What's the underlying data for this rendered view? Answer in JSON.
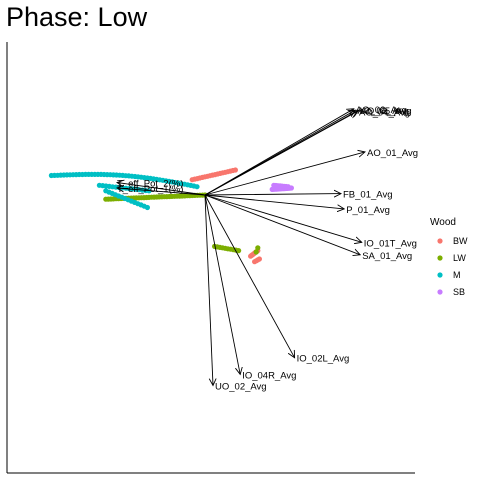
{
  "chart_data": {
    "type": "scatter",
    "title": "Phase: Low",
    "legend": {
      "title": "Wood",
      "position": "right",
      "entries": [
        {
          "label": "BW",
          "color": "#F8766D"
        },
        {
          "label": "LW",
          "color": "#7CAE00"
        },
        {
          "label": "M",
          "color": "#00BFC4"
        },
        {
          "label": "SB",
          "color": "#C77CFF"
        }
      ]
    },
    "xlim": [
      -1.0,
      1.55
    ],
    "ylim": [
      -1.85,
      1.25
    ],
    "grid": false,
    "vectors": [
      {
        "label": "AO_02_Avg",
        "x": 0.93,
        "y": 0.62
      },
      {
        "label": "AO_03_Avg",
        "x": 0.94,
        "y": 0.61
      },
      {
        "label": "AO_04_Avg",
        "x": 0.95,
        "y": 0.6
      },
      {
        "label": "AO_05_Avg",
        "x": 0.96,
        "y": 0.61
      },
      {
        "label": "AO_01_Avg",
        "x": 1.0,
        "y": 0.31
      },
      {
        "label": "FB_01_Avg",
        "x": 0.85,
        "y": 0.01
      },
      {
        "label": "P_01_Avg",
        "x": 0.87,
        "y": -0.1
      },
      {
        "label": "IO_01T_Avg",
        "x": 0.98,
        "y": -0.34
      },
      {
        "label": "SA_01_Avg",
        "x": 0.97,
        "y": -0.43
      },
      {
        "label": "IO_02L_Avg",
        "x": 0.56,
        "y": -1.17
      },
      {
        "label": "IO_04R_Avg",
        "x": 0.22,
        "y": -1.29
      },
      {
        "label": "UO_02_Avg",
        "x": 0.05,
        "y": -1.37
      },
      {
        "label": "T_eff_Pot_2(%)",
        "x": -0.55,
        "y": 0.09
      },
      {
        "label": "T_eff_Pot_1(%)",
        "x": -0.55,
        "y": 0.05
      }
    ],
    "series": [
      {
        "name": "BW",
        "color": "#F8766D",
        "groups": [
          {
            "x0": -0.08,
            "y0": 0.11,
            "x1": 0.19,
            "y1": 0.18,
            "curve": 0.0,
            "n": 18
          },
          {
            "x0": 0.285,
            "y0": -0.44,
            "x1": 0.33,
            "y1": -0.4,
            "curve": 0.0,
            "n": 8
          },
          {
            "x0": 0.31,
            "y0": -0.48,
            "x1": 0.34,
            "y1": -0.46,
            "curve": 0.0,
            "n": 4
          }
        ]
      },
      {
        "name": "LW",
        "color": "#7CAE00",
        "groups": [
          {
            "x0": -0.62,
            "y0": -0.03,
            "x1": 0.0,
            "y1": 0.0,
            "curve": 0.0,
            "n": 40
          },
          {
            "x0": 0.06,
            "y0": -0.37,
            "x1": 0.21,
            "y1": -0.4,
            "curve": 0.0,
            "n": 10
          },
          {
            "x0": 0.32,
            "y0": -0.41,
            "x1": 0.33,
            "y1": -0.38,
            "curve": 0.0,
            "n": 2
          }
        ]
      },
      {
        "name": "M",
        "color": "#00BFC4",
        "groups": [
          {
            "x0": -0.96,
            "y0": 0.14,
            "x1": -0.05,
            "y1": 0.06,
            "curve": 0.04,
            "n": 48
          },
          {
            "x0": -0.66,
            "y0": 0.07,
            "x1": -0.35,
            "y1": 0.03,
            "curve": 0.0,
            "n": 16
          },
          {
            "x0": -0.62,
            "y0": 0.03,
            "x1": -0.36,
            "y1": -0.09,
            "curve": 0.0,
            "n": 14
          }
        ]
      },
      {
        "name": "SB",
        "color": "#C77CFF",
        "groups": [
          {
            "x0": 0.42,
            "y0": 0.04,
            "x1": 0.54,
            "y1": 0.05,
            "curve": 0.0,
            "n": 14
          },
          {
            "x0": 0.43,
            "y0": 0.07,
            "x1": 0.52,
            "y1": 0.06,
            "curve": 0.0,
            "n": 8
          }
        ]
      }
    ]
  }
}
